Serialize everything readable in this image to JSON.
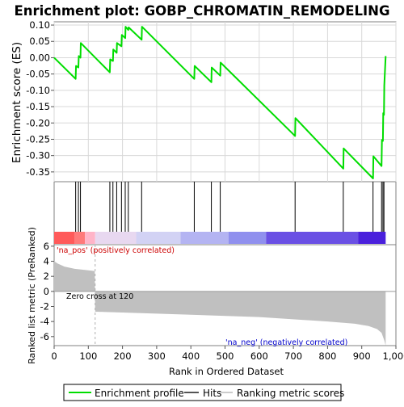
{
  "chart_data": {
    "type": "line",
    "title": "Enrichment plot: GOBP_CHROMATIN_REMODELING",
    "top_panel": {
      "ylabel": "Enrichment score (ES)",
      "ylim": [
        -0.38,
        0.11
      ],
      "y_ticks": [
        0.1,
        0.05,
        0.0,
        -0.05,
        -0.1,
        -0.15,
        -0.2,
        -0.25,
        -0.3,
        -0.35
      ],
      "y_tick_labels": [
        "0.10",
        "0.05",
        "0.00",
        "-0.05",
        "-0.10",
        "-0.15",
        "-0.20",
        "-0.25",
        "-0.30",
        "-0.35"
      ],
      "series": [
        {
          "name": "Enrichment profile",
          "color": "#00dd00",
          "x": [
            0,
            63,
            64,
            71,
            72,
            77,
            78,
            163,
            164,
            172,
            173,
            183,
            184,
            197,
            198,
            208,
            209,
            217,
            218,
            256,
            257,
            410,
            411,
            460,
            461,
            486,
            487,
            705,
            706,
            846,
            847,
            933,
            934,
            958,
            959,
            962,
            963,
            965,
            966,
            970
          ],
          "y": [
            0.0,
            -0.065,
            -0.025,
            -0.03,
            0.005,
            0.0,
            0.045,
            -0.045,
            -0.005,
            -0.01,
            0.025,
            0.015,
            0.045,
            0.035,
            0.07,
            0.06,
            0.095,
            0.085,
            0.093,
            0.055,
            0.095,
            -0.065,
            -0.025,
            -0.075,
            -0.03,
            -0.055,
            -0.015,
            -0.24,
            -0.185,
            -0.34,
            -0.278,
            -0.37,
            -0.302,
            -0.332,
            -0.252,
            -0.255,
            -0.17,
            -0.175,
            -0.085,
            0.005
          ]
        }
      ],
      "grid": true
    },
    "hits_panel": {
      "legend_name": "Hits",
      "hit_positions": [
        63,
        71,
        77,
        163,
        172,
        183,
        197,
        208,
        217,
        256,
        410,
        460,
        486,
        705,
        846,
        933,
        958,
        962,
        965
      ],
      "color_bar": [
        "#ff5a5a",
        "#ff7a7a",
        "#ffb4c8",
        "#e8d8f0",
        "#d2d2f4",
        "#b4b4f2",
        "#9090ee",
        "#6a50e4",
        "#4a20dc",
        "#3300cc"
      ],
      "color_bar_breaks": [
        0,
        60,
        90,
        120,
        240,
        370,
        510,
        620,
        890,
        970
      ]
    },
    "bottom_panel": {
      "ylabel": "Ranked list metric (PreRanked)",
      "ylim": [
        -7.2,
        6.2
      ],
      "y_ticks": [
        6,
        4,
        2,
        0,
        -2,
        -4,
        -6
      ],
      "y_tick_labels": [
        "6",
        "4",
        "2",
        "0",
        "-2",
        "-4",
        "-6"
      ],
      "legend_name": "Ranking metric scores",
      "area_color": "#c0c0c0",
      "x": [
        0,
        10,
        30,
        60,
        90,
        119,
        120,
        200,
        400,
        600,
        800,
        880,
        920,
        945,
        958,
        966,
        970
      ],
      "y": [
        4.0,
        3.7,
        3.3,
        3.0,
        2.85,
        2.7,
        -2.7,
        -2.8,
        -3.1,
        -3.4,
        -4.0,
        -4.3,
        -4.6,
        -5.0,
        -5.5,
        -6.5,
        -7.2
      ],
      "zero_cross_label": "Zero cross at 120",
      "zero_cross_x": 120,
      "pos_label": "'na_pos' (positively correlated)",
      "neg_label": "'na_neg' (negatively correlated)"
    },
    "xlabel": "Rank in Ordered Dataset",
    "xlim": [
      0,
      1000
    ],
    "x_ticks": [
      0,
      100,
      200,
      300,
      400,
      500,
      600,
      700,
      800,
      900,
      1000
    ],
    "x_tick_labels": [
      "0",
      "100",
      "200",
      "300",
      "400",
      "500",
      "600",
      "700",
      "800",
      "900",
      "1,000"
    ],
    "legend": {
      "placement": "bottom",
      "items": [
        {
          "label": "Enrichment profile",
          "color": "#00dd00"
        },
        {
          "label": "Hits",
          "color": "#555555"
        },
        {
          "label": "Ranking metric scores",
          "color": "#cccccc"
        }
      ]
    }
  }
}
